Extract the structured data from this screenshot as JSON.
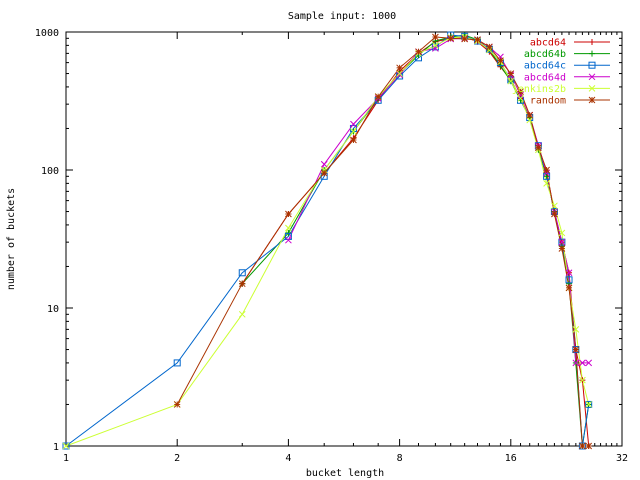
{
  "chart_data": {
    "type": "line",
    "title": "Sample input: 1000",
    "xlabel": "bucket length",
    "ylabel": "number of buckets",
    "xscale": "log2",
    "yscale": "log10",
    "xlim": [
      1,
      32
    ],
    "ylim": [
      1,
      1000
    ],
    "xticks": [
      {
        "v": 1,
        "label": "1"
      },
      {
        "v": 2,
        "label": "2"
      },
      {
        "v": 4,
        "label": "4"
      },
      {
        "v": 8,
        "label": "8"
      },
      {
        "v": 16,
        "label": "16"
      },
      {
        "v": 32,
        "label": "32"
      }
    ],
    "yticks": [
      {
        "v": 1,
        "label": "1"
      },
      {
        "v": 10,
        "label": "10"
      },
      {
        "v": 100,
        "label": "100"
      },
      {
        "v": 1000,
        "label": "1000"
      }
    ],
    "grid": false,
    "legend_position": "top-right",
    "series": [
      {
        "name": "abcd64",
        "color": "#cc0000",
        "marker": "plus",
        "points": [
          [
            3,
            15
          ],
          [
            4,
            48
          ],
          [
            5,
            95
          ],
          [
            6,
            170
          ],
          [
            7,
            320
          ],
          [
            8,
            520
          ],
          [
            9,
            700
          ],
          [
            10,
            850
          ],
          [
            11,
            900
          ],
          [
            12,
            920
          ],
          [
            13,
            850
          ],
          [
            14,
            720
          ],
          [
            15,
            560
          ],
          [
            16,
            450
          ],
          [
            17,
            330
          ],
          [
            18,
            240
          ],
          [
            19,
            150
          ],
          [
            20,
            95
          ],
          [
            21,
            50
          ],
          [
            22,
            30
          ],
          [
            23,
            18
          ],
          [
            24,
            5
          ],
          [
            25,
            3
          ],
          [
            26,
            1
          ]
        ]
      },
      {
        "name": "abcd64b",
        "color": "#009900",
        "marker": "cross",
        "points": [
          [
            3,
            15
          ],
          [
            4,
            35
          ],
          [
            5,
            100
          ],
          [
            6,
            190
          ],
          [
            7,
            330
          ],
          [
            8,
            500
          ],
          [
            9,
            680
          ],
          [
            10,
            860
          ],
          [
            11,
            920
          ],
          [
            12,
            950
          ],
          [
            13,
            880
          ],
          [
            14,
            740
          ],
          [
            15,
            570
          ],
          [
            16,
            440
          ],
          [
            17,
            320
          ],
          [
            18,
            240
          ],
          [
            19,
            140
          ],
          [
            20,
            90
          ],
          [
            21,
            50
          ],
          [
            22,
            28
          ],
          [
            23,
            15
          ],
          [
            24,
            4
          ],
          [
            25,
            1
          ],
          [
            26,
            2
          ]
        ]
      },
      {
        "name": "abcd64c",
        "color": "#0066cc",
        "marker": "square",
        "points": [
          [
            1,
            1
          ],
          [
            2,
            4
          ],
          [
            3,
            18
          ],
          [
            4,
            33
          ],
          [
            5,
            90
          ],
          [
            6,
            200
          ],
          [
            7,
            320
          ],
          [
            8,
            480
          ],
          [
            9,
            650
          ],
          [
            10,
            780
          ],
          [
            11,
            950
          ],
          [
            12,
            930
          ],
          [
            13,
            860
          ],
          [
            14,
            750
          ],
          [
            15,
            600
          ],
          [
            16,
            450
          ],
          [
            17,
            320
          ],
          [
            18,
            240
          ],
          [
            19,
            150
          ],
          [
            20,
            90
          ],
          [
            21,
            50
          ],
          [
            22,
            30
          ],
          [
            23,
            16
          ],
          [
            24,
            5
          ],
          [
            25,
            1
          ],
          [
            26,
            2
          ]
        ]
      },
      {
        "name": "abcd64d",
        "color": "#cc00cc",
        "marker": "x",
        "points": [
          [
            4,
            31
          ],
          [
            5,
            110
          ],
          [
            6,
            215
          ],
          [
            7,
            330
          ],
          [
            8,
            490
          ],
          [
            9,
            720
          ],
          [
            10,
            760
          ],
          [
            11,
            890
          ],
          [
            12,
            900
          ],
          [
            13,
            870
          ],
          [
            14,
            780
          ],
          [
            15,
            660
          ],
          [
            16,
            490
          ],
          [
            17,
            350
          ],
          [
            18,
            250
          ],
          [
            19,
            150
          ],
          [
            20,
            95
          ],
          [
            21,
            50
          ],
          [
            22,
            30
          ],
          [
            23,
            18
          ],
          [
            24,
            4
          ],
          [
            25,
            4
          ],
          [
            26,
            4
          ]
        ]
      },
      {
        "name": "jenkins2b",
        "color": "#ccff33",
        "marker": "dash",
        "points": [
          [
            1,
            1
          ],
          [
            2,
            2
          ],
          [
            3,
            9
          ],
          [
            4,
            38
          ],
          [
            5,
            100
          ],
          [
            6,
            190
          ],
          [
            7,
            340
          ],
          [
            8,
            500
          ],
          [
            9,
            700
          ],
          [
            10,
            800
          ],
          [
            11,
            910
          ],
          [
            12,
            920
          ],
          [
            13,
            860
          ],
          [
            14,
            740
          ],
          [
            15,
            610
          ],
          [
            16,
            440
          ],
          [
            17,
            330
          ],
          [
            18,
            230
          ],
          [
            19,
            140
          ],
          [
            20,
            80
          ],
          [
            21,
            55
          ],
          [
            22,
            35
          ],
          [
            23,
            14
          ],
          [
            24,
            7
          ],
          [
            25,
            3
          ],
          [
            26,
            2
          ]
        ]
      },
      {
        "name": "random",
        "color": "#aa3300",
        "marker": "star",
        "points": [
          [
            2,
            2
          ],
          [
            3,
            15
          ],
          [
            4,
            48
          ],
          [
            5,
            95
          ],
          [
            6,
            165
          ],
          [
            7,
            340
          ],
          [
            8,
            550
          ],
          [
            9,
            720
          ],
          [
            10,
            920
          ],
          [
            11,
            900
          ],
          [
            12,
            890
          ],
          [
            13,
            880
          ],
          [
            14,
            780
          ],
          [
            15,
            620
          ],
          [
            16,
            500
          ],
          [
            17,
            370
          ],
          [
            18,
            250
          ],
          [
            19,
            145
          ],
          [
            20,
            100
          ],
          [
            21,
            48
          ],
          [
            22,
            27
          ],
          [
            23,
            14
          ],
          [
            24,
            5
          ],
          [
            25,
            1
          ],
          [
            26,
            1
          ]
        ]
      }
    ]
  }
}
